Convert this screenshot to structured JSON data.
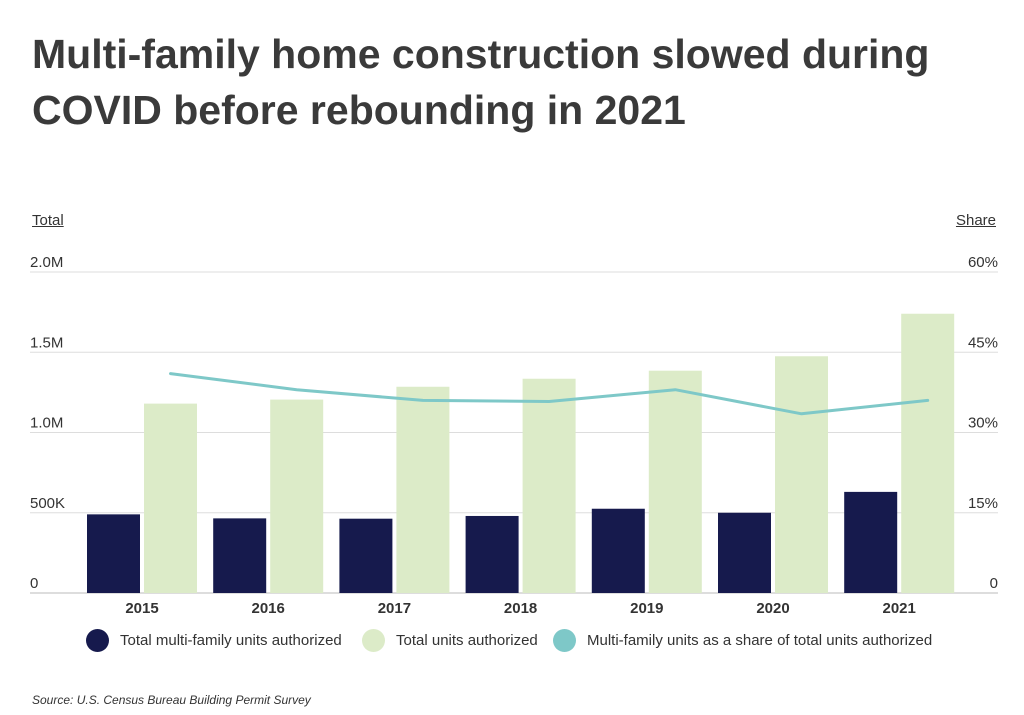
{
  "title": "Multi-family home construction slowed during COVID before rebounding in 2021",
  "source": "Source:  U.S. Census Bureau Building Permit Survey",
  "colors": {
    "multi_family": "#161a4d",
    "total_units": "#dcebc8",
    "share_line": "#7ec8c8",
    "gridline": "#dddddd",
    "text": "#333333"
  },
  "chart_data": {
    "type": "bar",
    "title": "Multi-family home construction slowed during COVID before rebounding in 2021",
    "categories": [
      "2015",
      "2016",
      "2017",
      "2018",
      "2019",
      "2020",
      "2021"
    ],
    "series": [
      {
        "name": "Total multi-family units authorized",
        "type": "bar",
        "axis": "left",
        "values": [
          490000,
          465000,
          463000,
          480000,
          525000,
          500000,
          630000
        ]
      },
      {
        "name": "Total units authorized",
        "type": "bar",
        "axis": "left",
        "values": [
          1180000,
          1205000,
          1285000,
          1335000,
          1385000,
          1475000,
          1740000
        ]
      },
      {
        "name": "Multi-family units as a share of total units authorized",
        "type": "line",
        "axis": "right",
        "values": [
          0.41,
          0.38,
          0.36,
          0.358,
          0.38,
          0.335,
          0.36
        ]
      }
    ],
    "y_left": {
      "label": "Total",
      "range": [
        0,
        2000000
      ],
      "ticks": [
        0,
        500000,
        1000000,
        1500000,
        2000000
      ],
      "tick_labels": [
        "0",
        "500K",
        "1.0M",
        "1.5M",
        "2.0M"
      ]
    },
    "y_right": {
      "label": "Share",
      "range": [
        0,
        0.6
      ],
      "ticks": [
        0,
        0.15,
        0.3,
        0.45,
        0.6
      ],
      "tick_labels": [
        "0",
        "15%",
        "30%",
        "45%",
        "60%"
      ]
    },
    "grid": true,
    "legend_position": "bottom"
  }
}
